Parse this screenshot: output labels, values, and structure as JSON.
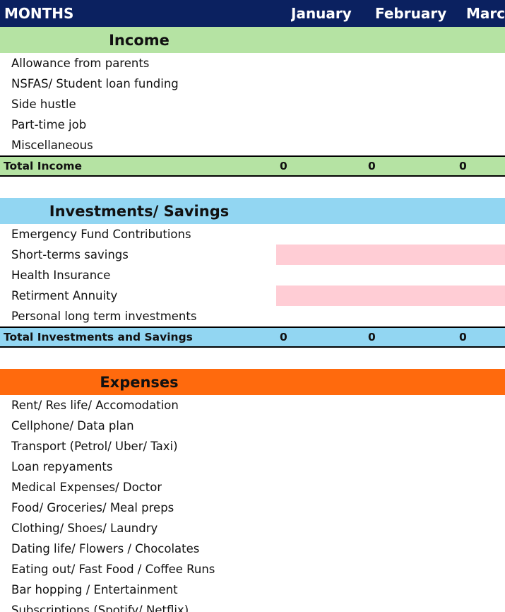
{
  "header": {
    "label": "MONTHS",
    "months": [
      "January",
      "February",
      "March"
    ]
  },
  "sections": [
    {
      "title": "Income",
      "items": [
        "Allowance from parents",
        "NSFAS/ Student loan funding",
        "Side hustle",
        "Part-time job",
        "Miscellaneous"
      ],
      "total": {
        "label": "Total Income",
        "values": [
          0,
          0,
          0
        ]
      }
    },
    {
      "title": "Investments/ Savings",
      "items": [
        "Emergency Fund Contributions",
        "Short-terms savings",
        "Health Insurance",
        "Retirment Annuity",
        "Personal long term investments"
      ],
      "total": {
        "label": "Total Investments and Savings",
        "values": [
          0,
          0,
          0
        ]
      }
    },
    {
      "title": "Expenses",
      "items": [
        "Rent/ Res life/ Accomodation",
        "Cellphone/ Data plan",
        "Transport (Petrol/ Uber/ Taxi)",
        "Loan repyaments",
        "Medical Expenses/ Doctor",
        "Food/ Groceries/  Meal preps",
        "Clothing/ Shoes/ Laundry",
        "Dating life/ Flowers / Chocolates",
        "Eating out/ Fast Food / Coffee Runs",
        "Bar hopping / Entertainment",
        "Subscriptions (Spotify/ Netflix)"
      ]
    }
  ]
}
